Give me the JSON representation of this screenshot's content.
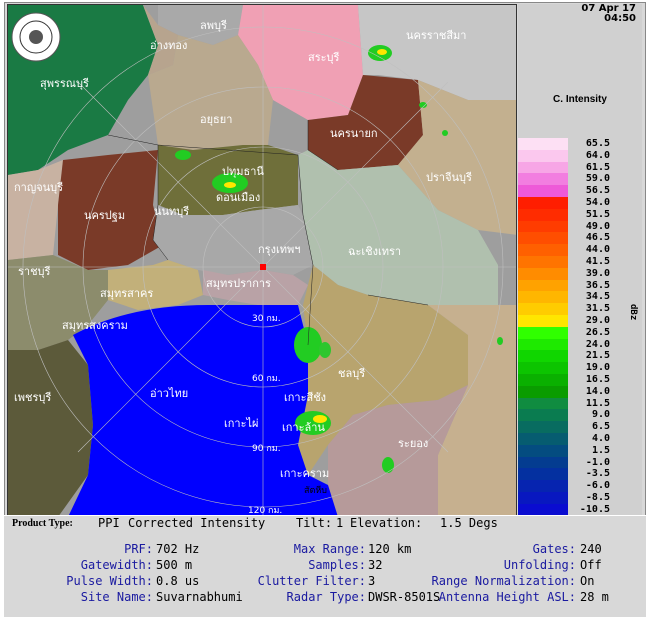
{
  "datetime": {
    "date": "07 Apr 17",
    "time": "04:50"
  },
  "scale": {
    "title": "C. Intensity",
    "unit": "dBz",
    "levels": [
      {
        "v": "65.5",
        "c": "#fde0f4"
      },
      {
        "v": "64.0",
        "c": "#fbc8ee"
      },
      {
        "v": "61.5",
        "c": "#f7a6e6"
      },
      {
        "v": "59.0",
        "c": "#f27ee0"
      },
      {
        "v": "56.5",
        "c": "#ee5ad8"
      },
      {
        "v": "54.0",
        "c": "#ff1e00"
      },
      {
        "v": "51.5",
        "c": "#ff2c00"
      },
      {
        "v": "49.0",
        "c": "#ff3c00"
      },
      {
        "v": "46.5",
        "c": "#ff4e00"
      },
      {
        "v": "44.0",
        "c": "#ff6000"
      },
      {
        "v": "41.5",
        "c": "#ff7400"
      },
      {
        "v": "39.0",
        "c": "#ff8c00"
      },
      {
        "v": "36.5",
        "c": "#ffa200"
      },
      {
        "v": "34.5",
        "c": "#ffb600"
      },
      {
        "v": "31.5",
        "c": "#ffcc00"
      },
      {
        "v": "29.0",
        "c": "#ffe600"
      },
      {
        "v": "26.5",
        "c": "#30ff00"
      },
      {
        "v": "24.0",
        "c": "#1eea00"
      },
      {
        "v": "21.5",
        "c": "#10d600"
      },
      {
        "v": "19.0",
        "c": "#0cc400"
      },
      {
        "v": "16.5",
        "c": "#0ab000"
      },
      {
        "v": "14.0",
        "c": "#0a9c00"
      },
      {
        "v": "11.5",
        "c": "#108c40"
      },
      {
        "v": "9.0",
        "c": "#0a7c50"
      },
      {
        "v": "6.5",
        "c": "#086c60"
      },
      {
        "v": "4.0",
        "c": "#065c70"
      },
      {
        "v": "1.5",
        "c": "#044c80"
      },
      {
        "v": "-1.0",
        "c": "#043c90"
      },
      {
        "v": "-3.5",
        "c": "#0430a0"
      },
      {
        "v": "-6.0",
        "c": "#0624b0"
      },
      {
        "v": "-8.5",
        "c": "#0818c0"
      },
      {
        "v": "-10.5",
        "c": "#0a0cd0"
      }
    ]
  },
  "product": {
    "type_label": "Product Type:",
    "type_value": "PPI",
    "name": "Corrected Intensity",
    "tilt_label": "Tilt:",
    "tilt_value": "1",
    "elev_label": "Elevation:",
    "elev_value": "1.5 Degs"
  },
  "params": {
    "prf_label": "PRF:",
    "prf": "702 Hz",
    "gw_label": "Gatewidth:",
    "gw": "500 m",
    "pw_label": "Pulse Width:",
    "pw": "0.8 us",
    "site_label": "Site Name:",
    "site": "Suvarnabhumi",
    "mr_label": "Max Range:",
    "mr": "120 km",
    "samp_label": "Samples:",
    "samp": "32",
    "cf_label": "Clutter Filter:",
    "cf": "3",
    "rt_label": "Radar Type:",
    "rt": "DWSR-8501S",
    "gates_label": "Gates:",
    "gates": "240",
    "unf_label": "Unfolding:",
    "unf": "Off",
    "rn_label": "Range Normalization:",
    "rn": "On",
    "ah_label": "Antenna Height ASL:",
    "ah": "28 m"
  },
  "map": {
    "range_rings": [
      "30 กม.",
      "60 กม.",
      "90 กม.",
      "120 กม."
    ],
    "sea_label": "อ่าวไทย",
    "provinces": {
      "lopburi": "ลพบุรี",
      "saraburi": "สระบุรี",
      "nakhon_ratchasima": "นครราชสีมา",
      "suphanburi": "สุพรรณบุรี",
      "ang_thong": "อ่างทอง",
      "ayutthaya": "อยุธยา",
      "nakhon_nayok": "นครนายก",
      "kanchanaburi": "กาญจนบุรี",
      "nakhon_pathom": "นครปฐม",
      "pathum_thani": "ปทุมธานี",
      "nonthaburi": "นนทบุรี",
      "bangkok": "กรุงเทพฯ",
      "prachinburi": "ปราจีนบุรี",
      "chachoengsao": "ฉะเชิงเทรา",
      "samut_prakan": "สมุทรปราการ",
      "samut_sakhon": "สมุทรสาคร",
      "samut_songkhram": "สมุทรสงคราม",
      "ratchaburi": "ราชบุรี",
      "phetchaburi": "เพชรบุรี",
      "chonburi": "ชลบุรี",
      "rayong": "ระยอง",
      "don_mueang": "ดอนเมือง",
      "ko_si_chang": "เกาะสีชัง",
      "ko_phai": "เกาะไผ่",
      "ko_lan": "เกาะล้าน",
      "ko_khram": "เกาะคราม",
      "sattahip": "สัตหีบ"
    }
  }
}
